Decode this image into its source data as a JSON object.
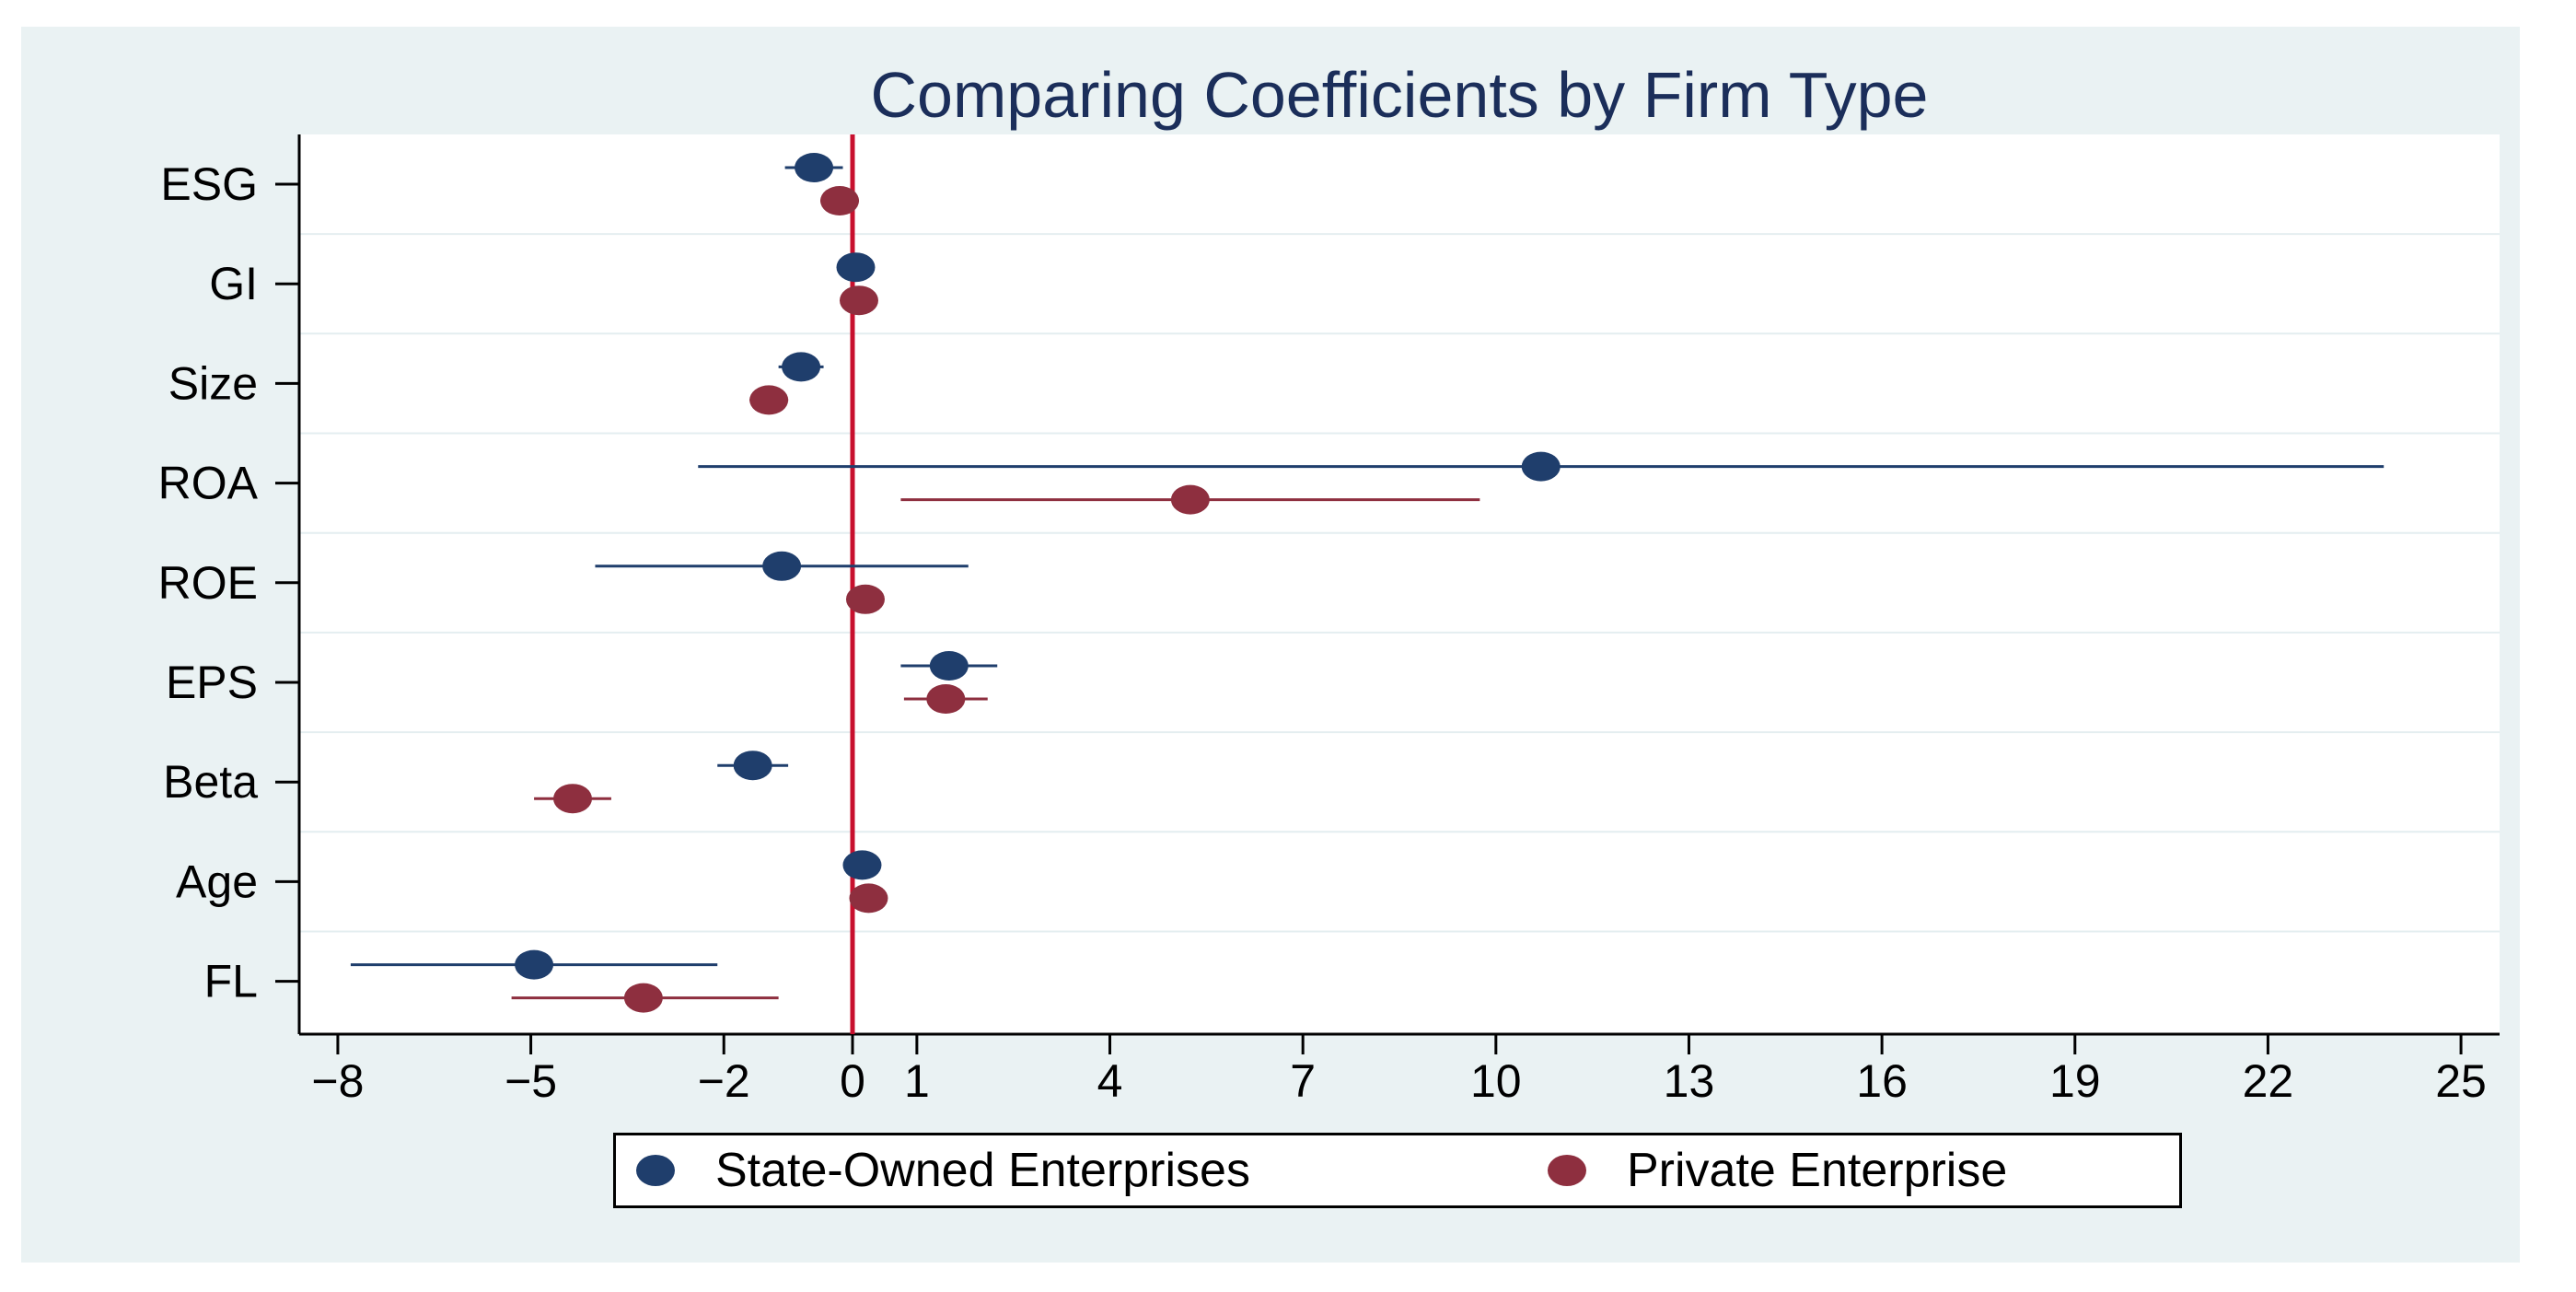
{
  "chart_data": {
    "type": "scatter",
    "subtype": "coefficient-plot",
    "title": "Comparing Coefficients by Firm Type",
    "xlabel": "",
    "ylabel": "",
    "xlim": [
      -8.6,
      25.6
    ],
    "x_ticks": [
      -8,
      -5,
      -2,
      0,
      1,
      4,
      7,
      10,
      13,
      16,
      19,
      22,
      25
    ],
    "x_tick_labels": [
      "−8",
      "−5",
      "−2",
      "0",
      "1",
      "4",
      "7",
      "10",
      "13",
      "16",
      "19",
      "22",
      "25"
    ],
    "reference_line": 0,
    "categories": [
      "ESG",
      "GI",
      "Size",
      "ROA",
      "ROE",
      "EPS",
      "Beta",
      "Age",
      "FL"
    ],
    "series": [
      {
        "name": "State-Owned Enterprises",
        "color": "#1f3e6c",
        "values": [
          -0.6,
          0.05,
          -0.8,
          10.7,
          -1.1,
          1.5,
          -1.55,
          0.15,
          -4.95
        ],
        "ci_low": [
          -1.05,
          0.05,
          -1.15,
          -2.4,
          -4.0,
          0.75,
          -2.1,
          0.15,
          -7.8
        ],
        "ci_high": [
          -0.15,
          0.05,
          -0.45,
          23.8,
          1.8,
          2.25,
          -1.0,
          0.15,
          -2.1
        ]
      },
      {
        "name": "Private Enterprise",
        "color": "#8e2f3f",
        "values": [
          -0.2,
          0.1,
          -1.3,
          5.25,
          0.2,
          1.45,
          -4.35,
          0.25,
          -3.25
        ],
        "ci_low": [
          -0.5,
          0.1,
          -1.6,
          0.75,
          0.2,
          0.8,
          -4.95,
          0.25,
          -5.3
        ],
        "ci_high": [
          0.1,
          0.1,
          -1.0,
          9.75,
          0.2,
          2.1,
          -3.75,
          0.25,
          -1.15
        ]
      }
    ],
    "legend_position": "bottom"
  }
}
